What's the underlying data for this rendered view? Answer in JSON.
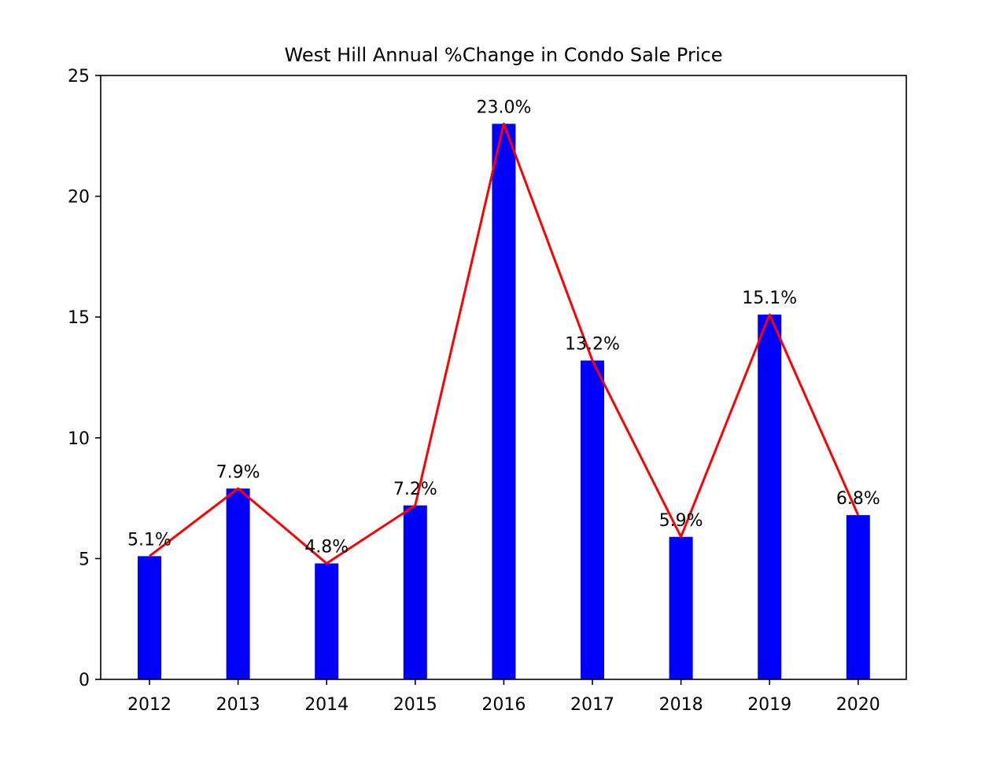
{
  "chart_data": {
    "type": "bar",
    "title": "West Hill Annual %Change in Condo Sale Price",
    "xlabel": "",
    "ylabel": "",
    "categories": [
      "2012",
      "2013",
      "2014",
      "2015",
      "2016",
      "2017",
      "2018",
      "2019",
      "2020"
    ],
    "series": [
      {
        "type": "bar",
        "color": "#0000ff",
        "values": [
          5.1,
          7.9,
          4.8,
          7.2,
          23.0,
          13.2,
          5.9,
          15.1,
          6.8
        ],
        "labels": [
          "5.1%",
          "7.9%",
          "4.8%",
          "7.2%",
          "23.0%",
          "13.2%",
          "5.9%",
          "15.1%",
          "6.8%"
        ]
      },
      {
        "type": "line",
        "color": "#ff0000",
        "values": [
          5.1,
          7.9,
          4.8,
          7.2,
          23.0,
          13.2,
          5.9,
          15.1,
          6.8
        ]
      }
    ],
    "ylim": [
      0,
      25
    ],
    "yticks": [
      0,
      5,
      10,
      15,
      20,
      25
    ],
    "grid": false,
    "legend": "none"
  }
}
